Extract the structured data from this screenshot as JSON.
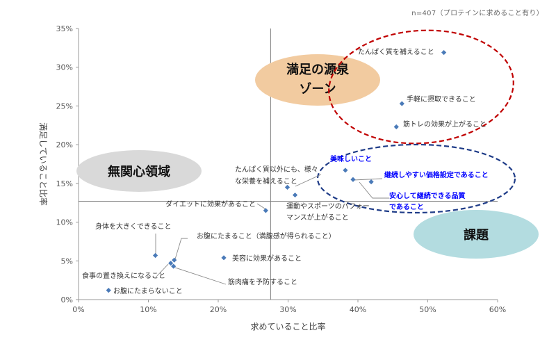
{
  "note": "n=407（プロテインに求めること有り）",
  "chart_data": {
    "type": "scatter",
    "xlabel": "求めていること比率",
    "ylabel": "満足していること比率",
    "xlim": [
      0,
      0.6
    ],
    "ylim": [
      0,
      0.35
    ],
    "x_ticks": [
      0,
      0.1,
      0.2,
      0.3,
      0.4,
      0.5,
      0.6
    ],
    "x_tick_labels": [
      "0%",
      "10%",
      "20%",
      "30%",
      "40%",
      "50%",
      "60%"
    ],
    "y_ticks": [
      0,
      0.05,
      0.1,
      0.15,
      0.2,
      0.25,
      0.3,
      0.35
    ],
    "y_tick_labels": [
      "0%",
      "5%",
      "10%",
      "15%",
      "20%",
      "25%",
      "30%",
      "35%"
    ],
    "grid": false,
    "reference_lines": {
      "x": 0.275,
      "y": 0.127
    },
    "marker_color": "#4a7ab8",
    "highlight_color": "#0000ff",
    "points": [
      {
        "label": "たんぱく質を補えること",
        "x": 0.523,
        "y": 0.319,
        "highlight": false
      },
      {
        "label": "手軽に摂取できること",
        "x": 0.463,
        "y": 0.253,
        "highlight": false
      },
      {
        "label": "筋トレの効果が上がること",
        "x": 0.455,
        "y": 0.223,
        "highlight": false
      },
      {
        "label": "美味しいこと",
        "x": 0.382,
        "y": 0.167,
        "highlight": true
      },
      {
        "label": "継続しやすい価格設定であること",
        "x": 0.419,
        "y": 0.152,
        "highlight": true
      },
      {
        "label": "安心して継続できる品質であること",
        "x": 0.393,
        "y": 0.155,
        "highlight": true
      },
      {
        "label": "たんぱく質以外にも、様々な栄養を補えること",
        "x": 0.299,
        "y": 0.145,
        "highlight": false
      },
      {
        "label": "運動やスポーツのパフォーマンスが上がること",
        "x": 0.31,
        "y": 0.135,
        "highlight": false
      },
      {
        "label": "ダイエットに効果があること",
        "x": 0.268,
        "y": 0.115,
        "highlight": false
      },
      {
        "label": "身体を大きくできること",
        "x": 0.11,
        "y": 0.057,
        "highlight": false
      },
      {
        "label": "お腹にたまること（満腹感が得られること）",
        "x": 0.137,
        "y": 0.051,
        "highlight": false
      },
      {
        "label": "美容に効果があること",
        "x": 0.208,
        "y": 0.054,
        "highlight": false
      },
      {
        "label": "食事の置き換えになること",
        "x": 0.132,
        "y": 0.047,
        "highlight": false
      },
      {
        "label": "筋肉痛を予防すること",
        "x": 0.136,
        "y": 0.043,
        "highlight": false
      },
      {
        "label": "お腹にたまらないこと",
        "x": 0.043,
        "y": 0.012,
        "highlight": false
      }
    ],
    "zones": [
      {
        "label": "満足の源泉\nゾーン",
        "fill": "#f2cba0"
      },
      {
        "label": "無関心領域",
        "fill": "#d9d9d9"
      },
      {
        "label": "課題",
        "fill": "#b3dce0"
      }
    ],
    "ovals": [
      {
        "name": "satisfaction-oval",
        "color": "#c00000"
      },
      {
        "name": "issue-oval",
        "color": "#1f3c88"
      }
    ]
  }
}
